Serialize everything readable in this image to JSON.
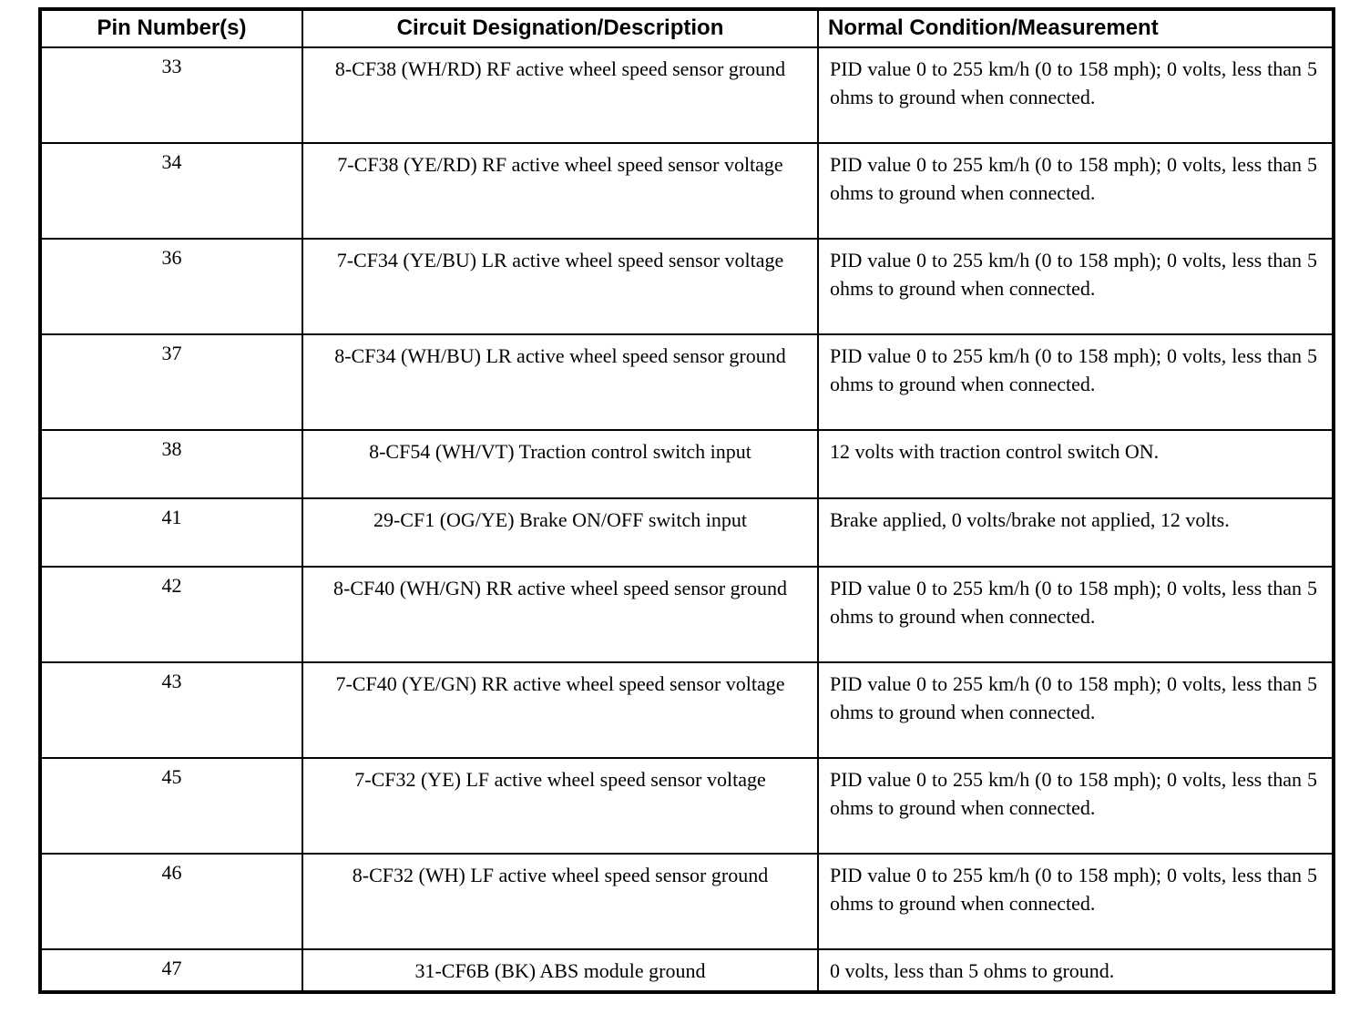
{
  "table": {
    "headers": [
      "Pin Number(s)",
      "Circuit Designation/Description",
      "Normal Condition/Measurement"
    ],
    "rows": [
      {
        "pin": "33",
        "circuit": "8-CF38 (WH/RD) RF active wheel speed sensor ground",
        "condition": "PID value 0 to 255 km/h (0 to 158 mph); 0 volts, less than 5 ohms to ground when connected."
      },
      {
        "pin": "34",
        "circuit": "7-CF38 (YE/RD) RF active wheel speed sensor voltage",
        "condition": "PID value 0 to 255 km/h (0 to 158 mph); 0 volts, less than 5 ohms to ground when connected."
      },
      {
        "pin": "36",
        "circuit": "7-CF34 (YE/BU) LR active wheel speed sensor voltage",
        "condition": "PID value 0 to 255 km/h (0 to 158 mph); 0 volts, less than 5 ohms to ground when connected."
      },
      {
        "pin": "37",
        "circuit": "8-CF34 (WH/BU) LR active wheel speed sensor ground",
        "condition": "PID value 0 to 255 km/h (0 to 158 mph); 0 volts, less than 5 ohms to ground when connected."
      },
      {
        "pin": "38",
        "circuit": "8-CF54 (WH/VT) Traction control switch input",
        "condition": "12 volts with traction control switch ON."
      },
      {
        "pin": "41",
        "circuit": "29-CF1 (OG/YE) Brake ON/OFF switch input",
        "condition": "Brake applied, 0 volts/brake not applied, 12 volts."
      },
      {
        "pin": "42",
        "circuit": "8-CF40 (WH/GN) RR active wheel speed sensor ground",
        "condition": "PID value 0 to 255 km/h (0 to 158 mph); 0 volts, less than 5 ohms to ground when connected."
      },
      {
        "pin": "43",
        "circuit": "7-CF40 (YE/GN) RR active wheel speed sensor voltage",
        "condition": "PID value 0 to 255 km/h (0 to 158 mph); 0 volts, less than 5 ohms to ground when connected."
      },
      {
        "pin": "45",
        "circuit": "7-CF32 (YE) LF active wheel speed sensor voltage",
        "condition": "PID value 0 to 255 km/h (0 to 158 mph); 0 volts, less than 5 ohms to ground when connected."
      },
      {
        "pin": "46",
        "circuit": "8-CF32 (WH) LF active wheel speed sensor ground",
        "condition": "PID value 0 to 255 km/h (0 to 158 mph); 0 volts, less than 5 ohms to ground when connected."
      },
      {
        "pin": "47",
        "circuit": "31-CF6B (BK) ABS module ground",
        "condition": "0 volts, less than 5 ohms to ground."
      }
    ]
  }
}
